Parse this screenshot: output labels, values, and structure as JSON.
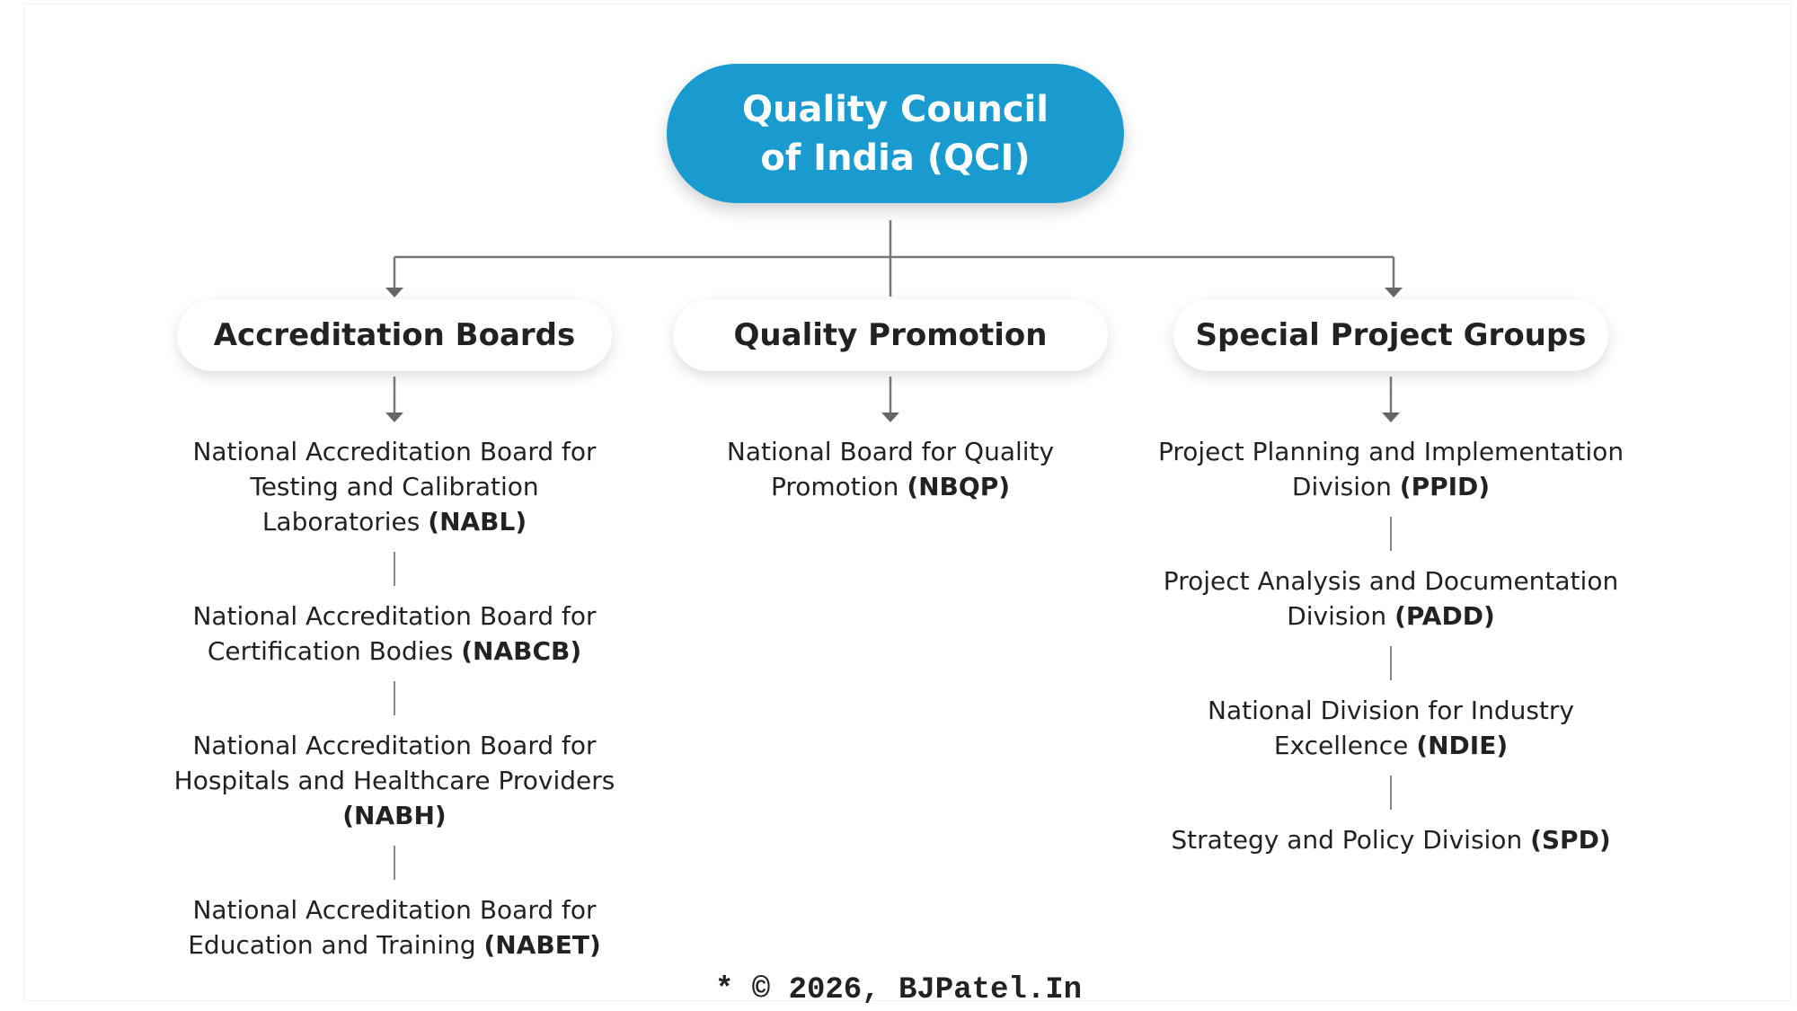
{
  "root": {
    "label": "Quality Council of India (QCI)"
  },
  "branches": [
    {
      "title": "Accreditation Boards",
      "items": [
        {
          "name": "National Accreditation Board for Testing and Calibration Laboratories",
          "abbr": "(NABL)"
        },
        {
          "name": "National Accreditation Board for Certification Bodies",
          "abbr": "(NABCB)"
        },
        {
          "name": "National Accreditation Board for Hospitals and Healthcare Providers",
          "abbr": "(NABH)"
        },
        {
          "name": "National Accreditation Board for Education and Training",
          "abbr": "(NABET)"
        }
      ]
    },
    {
      "title": "Quality Promotion",
      "items": [
        {
          "name": "National Board for Quality Promotion",
          "abbr": "(NBQP)"
        }
      ]
    },
    {
      "title": "Special Project Groups",
      "items": [
        {
          "name": "Project Planning and Implementation Division",
          "abbr": "(PPID)"
        },
        {
          "name": "Project Analysis and Documentation Division",
          "abbr": "(PADD)"
        },
        {
          "name": "National Division for Industry Excellence",
          "abbr": "(NDIE)"
        },
        {
          "name": "Strategy and Policy Division",
          "abbr": "(SPD)"
        }
      ]
    }
  ],
  "footer": "* © 2026, BJPatel.In"
}
